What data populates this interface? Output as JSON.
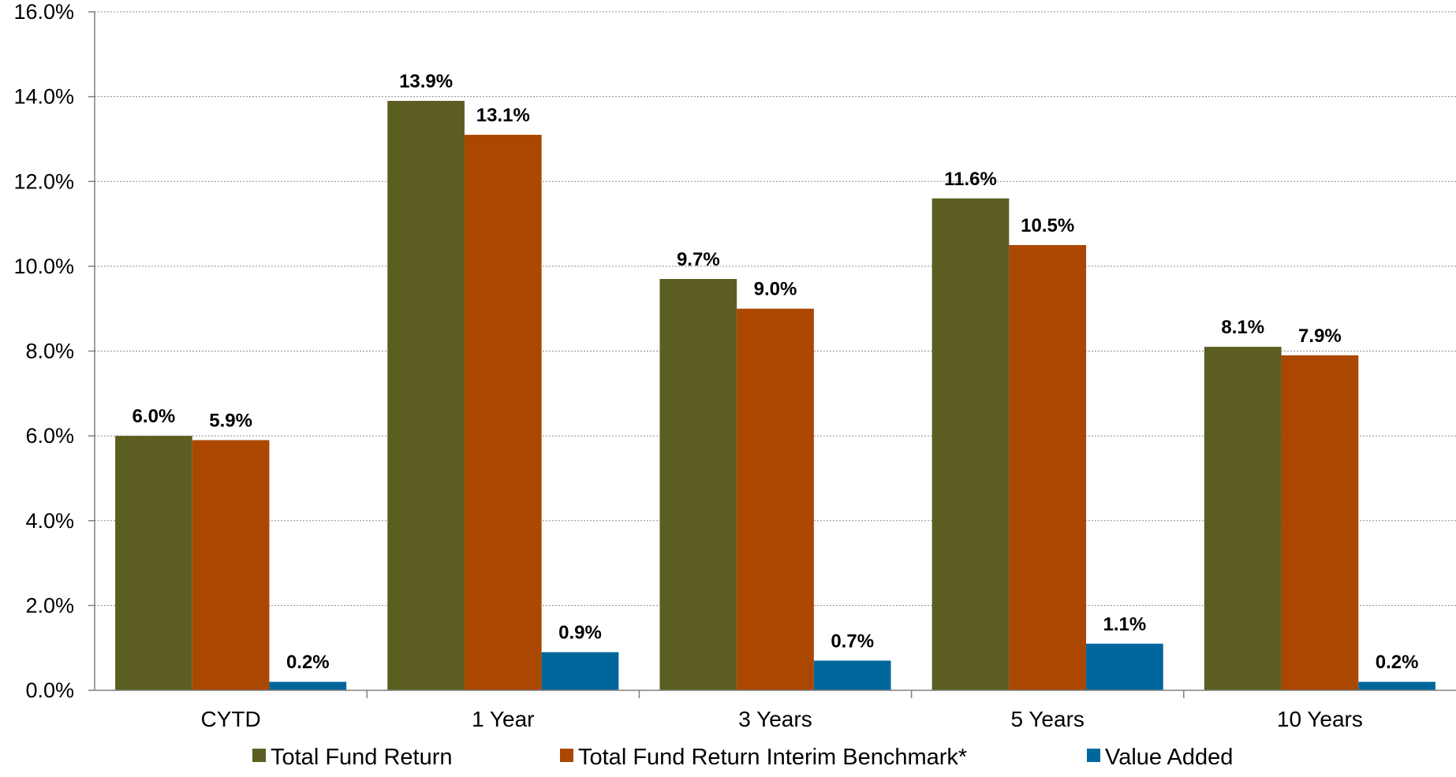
{
  "chart_data": {
    "type": "bar",
    "categories": [
      "CYTD",
      "1 Year",
      "3 Years",
      "5 Years",
      "10 Years"
    ],
    "series": [
      {
        "name": "Total Fund Return",
        "color": "#5C5E21",
        "values": [
          6.0,
          13.9,
          9.7,
          11.6,
          8.1
        ],
        "labels": [
          "6.0%",
          "13.9%",
          "9.7%",
          "11.6%",
          "8.1%"
        ]
      },
      {
        "name": "Total Fund Return Interim Benchmark*",
        "color": "#AB4700",
        "values": [
          5.9,
          13.1,
          9.0,
          10.5,
          7.9
        ],
        "labels": [
          "5.9%",
          "13.1%",
          "9.0%",
          "10.5%",
          "7.9%"
        ]
      },
      {
        "name": "Value Added",
        "color": "#00679D",
        "values": [
          0.2,
          0.9,
          0.7,
          1.1,
          0.2
        ],
        "labels": [
          "0.2%",
          "0.9%",
          "0.7%",
          "1.1%",
          "0.2%"
        ]
      }
    ],
    "ylim": [
      0,
      16
    ],
    "yticks": [
      0,
      2,
      4,
      6,
      8,
      10,
      12,
      14,
      16
    ],
    "ytick_labels": [
      "0.0%",
      "2.0%",
      "4.0%",
      "6.0%",
      "8.0%",
      "10.0%",
      "12.0%",
      "14.0%",
      "16.0%"
    ],
    "title": "",
    "xlabel": "",
    "ylabel": "",
    "grid": true,
    "legend_position": "bottom"
  }
}
